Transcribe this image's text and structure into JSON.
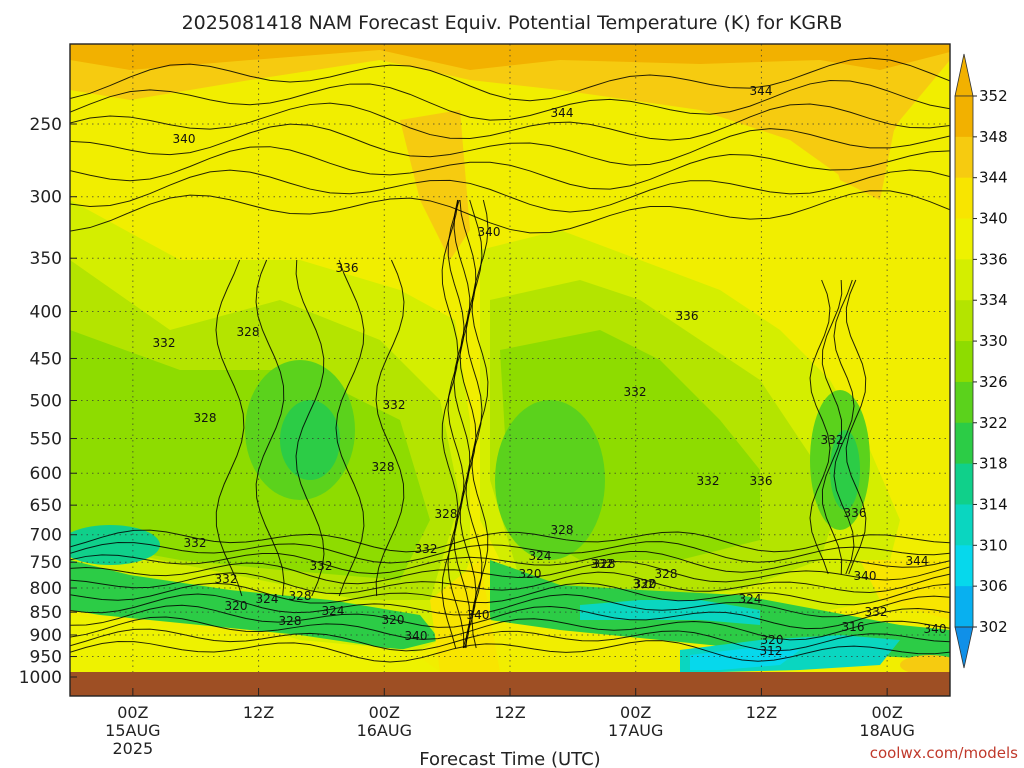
{
  "chart_data": {
    "type": "heatmap",
    "title": "2025081418 NAM Forecast Equiv. Potential Temperature (K) for KGRB",
    "xlabel": "Forecast Time (UTC)",
    "ylabel": "",
    "x_ticks": [
      {
        "hour": 6,
        "lines": [
          "00Z",
          "15AUG",
          "2025"
        ]
      },
      {
        "hour": 18,
        "lines": [
          "12Z"
        ]
      },
      {
        "hour": 30,
        "lines": [
          "00Z",
          "16AUG"
        ]
      },
      {
        "hour": 42,
        "lines": [
          "12Z"
        ]
      },
      {
        "hour": 54,
        "lines": [
          "00Z",
          "17AUG"
        ]
      },
      {
        "hour": 66,
        "lines": [
          "12Z"
        ]
      },
      {
        "hour": 78,
        "lines": [
          "00Z",
          "18AUG"
        ]
      }
    ],
    "xlim_hours": [
      0,
      84
    ],
    "y_ticks": [
      "250",
      "300",
      "350",
      "400",
      "450",
      "500",
      "550",
      "600",
      "650",
      "700",
      "750",
      "800",
      "850",
      "900",
      "950",
      "1000"
    ],
    "ylim_hPa": [
      1000,
      200
    ],
    "y_scale": "log",
    "colorbar": {
      "labels": [
        "352",
        "348",
        "344",
        "340",
        "336",
        "334",
        "330",
        "326",
        "322",
        "318",
        "314",
        "310",
        "306",
        "302"
      ],
      "colors": [
        "#f2b100",
        "#f6cb10",
        "#f8e500",
        "#eef200",
        "#d4ee00",
        "#b4e400",
        "#8edc00",
        "#5bd21c",
        "#2ccc46",
        "#10d08a",
        "#0ad6c0",
        "#06d8ec",
        "#08b0f0",
        "#1090e8"
      ]
    },
    "contour_labels": [
      "344",
      "344",
      "340",
      "336",
      "340",
      "328",
      "332",
      "336",
      "332",
      "332",
      "328",
      "332",
      "328",
      "336",
      "332",
      "336",
      "328",
      "332",
      "332",
      "328",
      "324",
      "332",
      "320",
      "328",
      "332",
      "324",
      "328",
      "328",
      "324",
      "320",
      "340",
      "324",
      "316",
      "320",
      "312",
      "340",
      "344",
      "332",
      "332",
      "328",
      "320",
      "340",
      "320",
      "332",
      "340"
    ],
    "ground_color": "#9e4f24",
    "grid": true
  },
  "credit": "coolwx.com/models"
}
